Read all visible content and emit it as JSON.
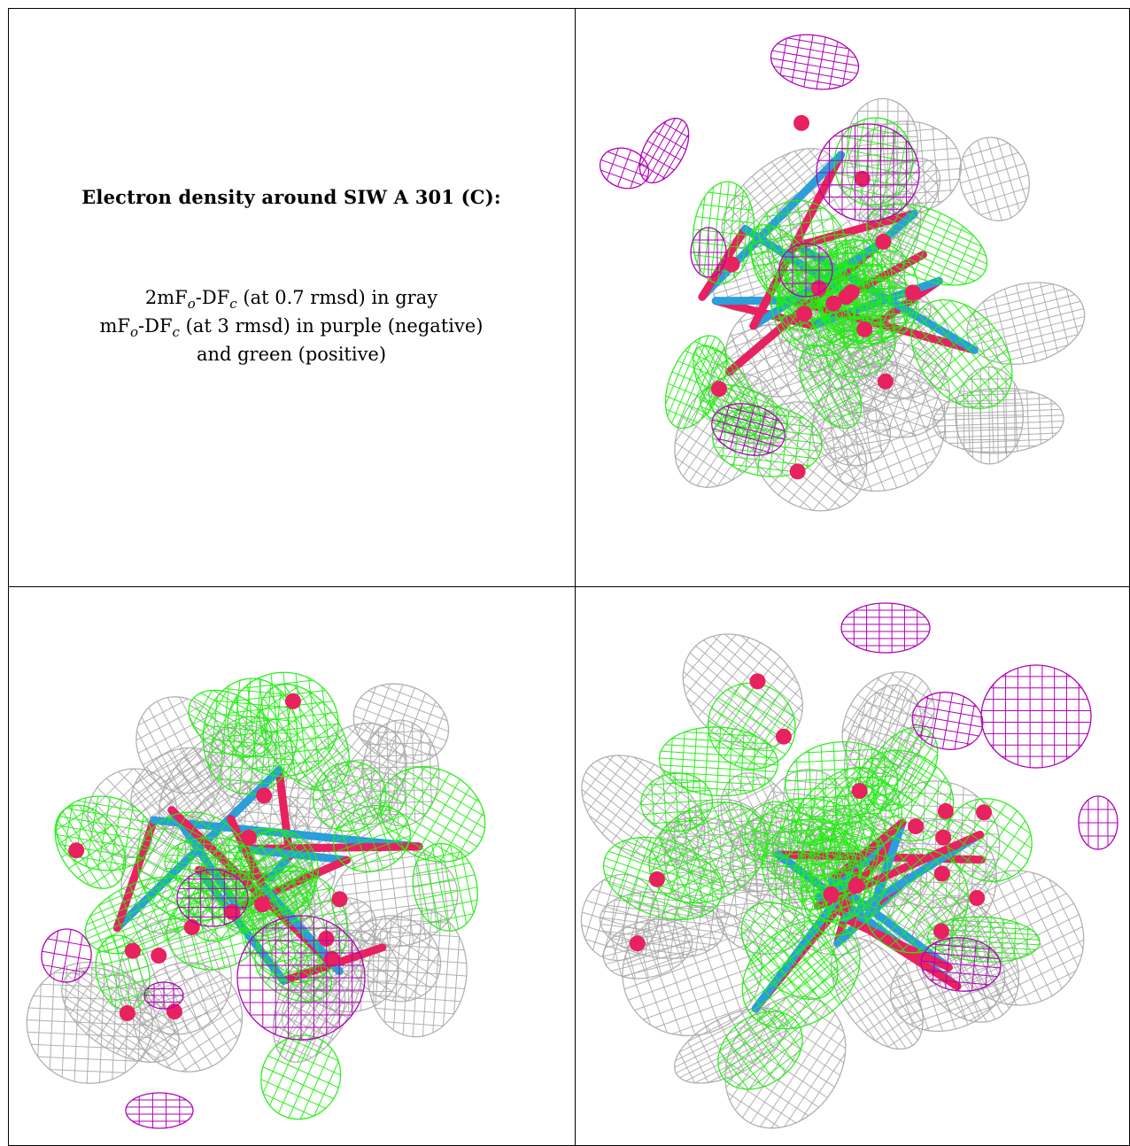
{
  "caption": {
    "title": "Electron density around SIW A 301 (C):",
    "line1": "2mFₒ-DF꜀ (at 0.7 rmsd) in gray",
    "line2": "mFₒ-DF꜀ (at 3 rmsd) in purple (negative)",
    "line3": "and green (positive)"
  },
  "colors": {
    "mesh_2fofc": "#a8a8a8",
    "mesh_negative": "#b000b8",
    "mesh_positive": "#22ee11",
    "atom_oxygen": "#e8215f",
    "atom_carbon": "#2b9fd9",
    "border": "#000000"
  },
  "views": [
    {
      "name": "view-top-right"
    },
    {
      "name": "view-bottom-left"
    },
    {
      "name": "view-bottom-right"
    }
  ]
}
